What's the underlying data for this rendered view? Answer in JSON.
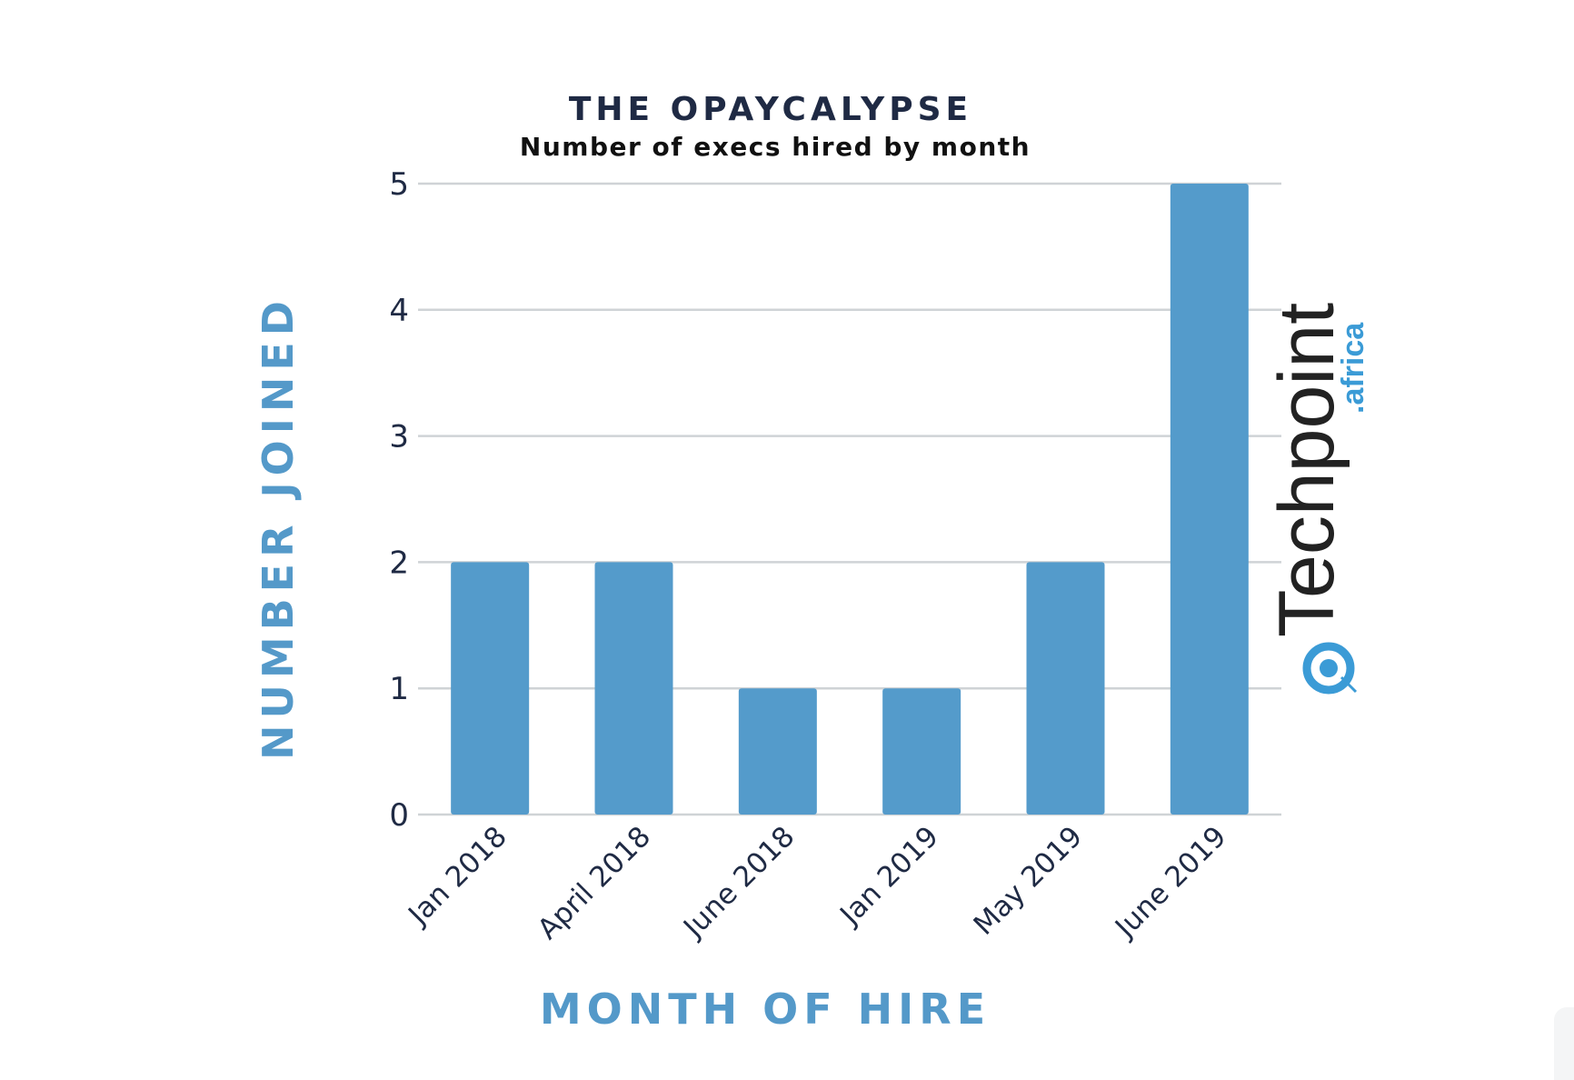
{
  "chart_data": {
    "type": "bar",
    "title": "THE OPAYCALYPSE",
    "subtitle": "Number of execs hired by month",
    "xlabel": "MONTH OF HIRE",
    "ylabel": "NUMBER JOINED",
    "categories": [
      "Jan 2018",
      "April 2018",
      "June 2018",
      "Jan 2019",
      "May 2019",
      "June 2019"
    ],
    "values": [
      2,
      2,
      1,
      1,
      2,
      5
    ],
    "yticks": [
      0,
      1,
      2,
      3,
      4,
      5
    ],
    "ylim": [
      0,
      5
    ],
    "grid": true,
    "legend": "none"
  },
  "watermark": {
    "brand": "Techpoint",
    "suffix": ".africa",
    "icon": "techpoint-logo-icon"
  },
  "colors": {
    "bar": "#549bcb",
    "axis_title": "#5499c9",
    "title": "#1f2a44",
    "grid": "#cfd3d6",
    "logo_dark": "#222222",
    "logo_blue": "#3b9bd6"
  }
}
